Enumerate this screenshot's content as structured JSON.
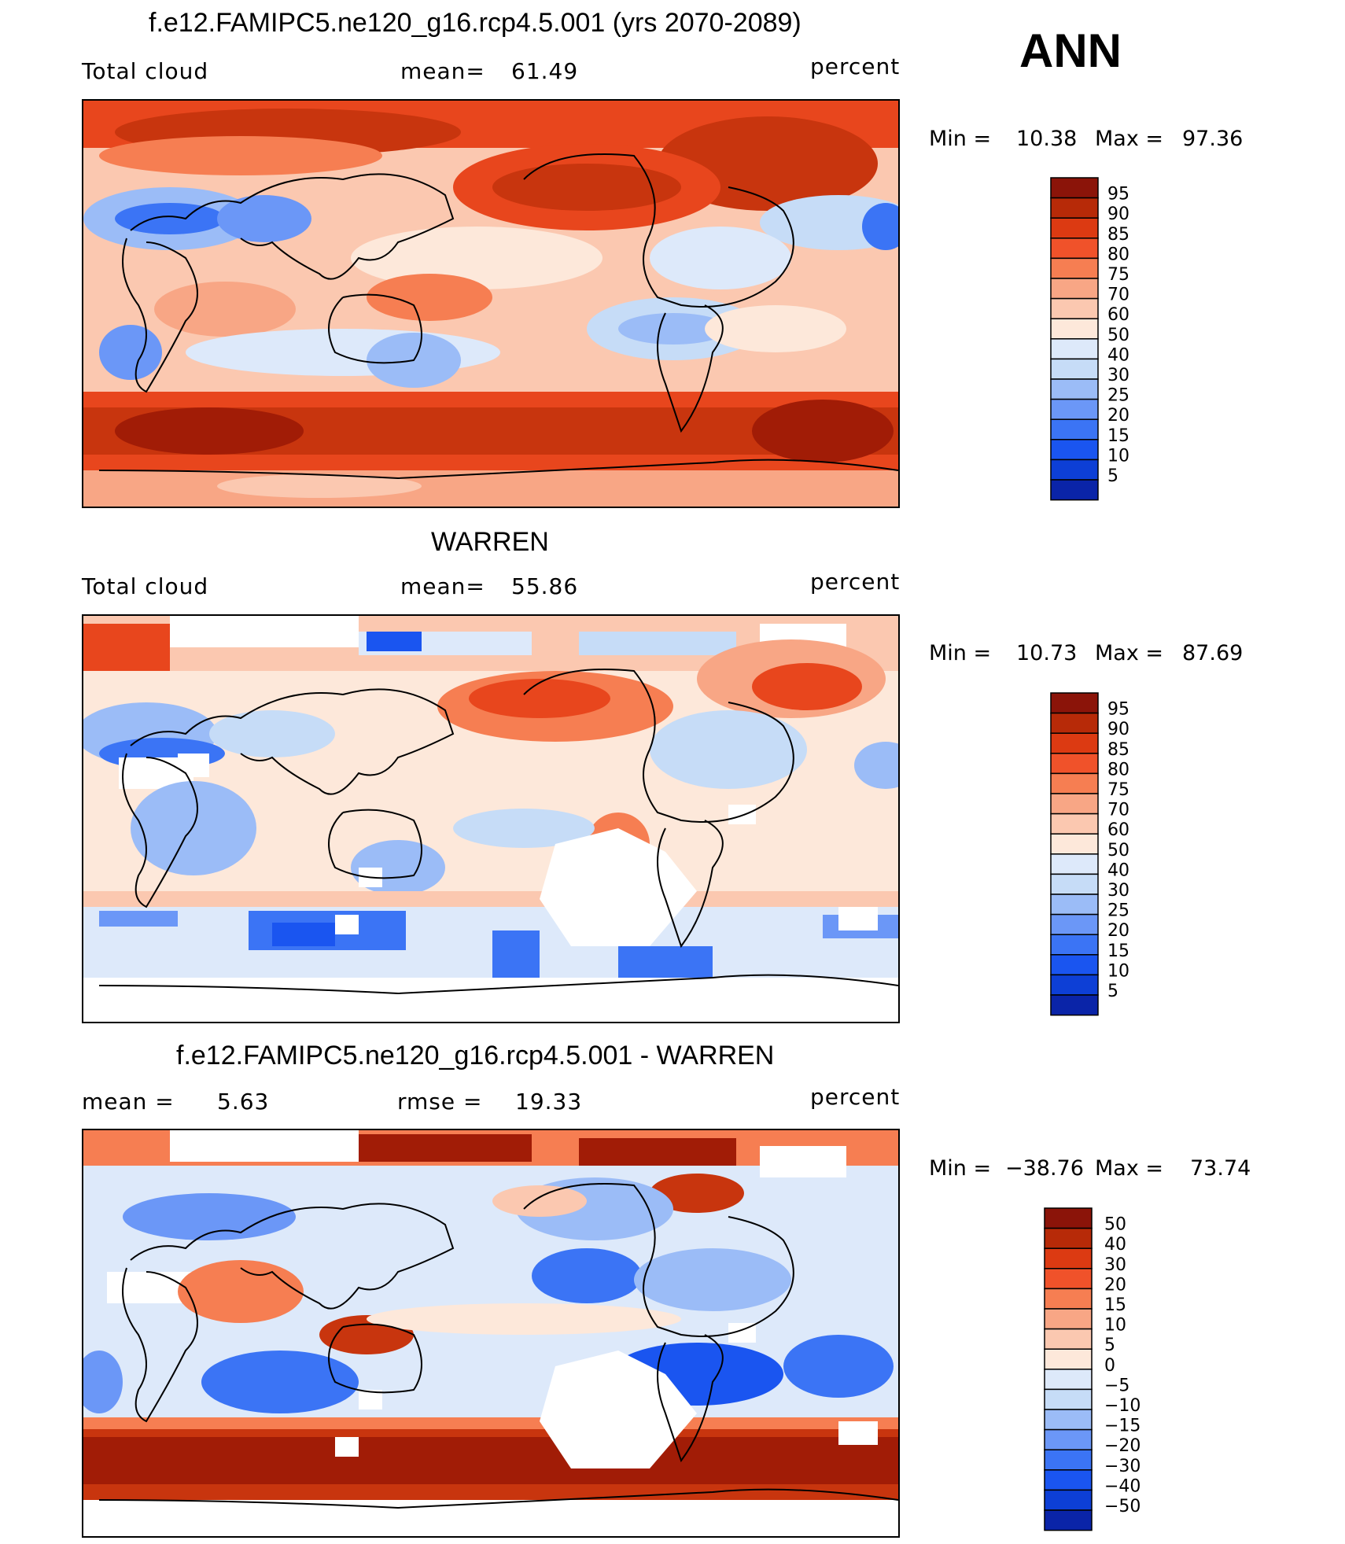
{
  "annual_label": "ANN",
  "colors": {
    "seq": [
      "#08086b",
      "#0a24a8",
      "#0d3fd6",
      "#1a55f0",
      "#3b74f5",
      "#6b97f7",
      "#9bbcf7",
      "#c6dcf7",
      "#dde9fa",
      "#fde8da",
      "#fbc8b0",
      "#f8a685",
      "#f67e52",
      "#f0522a",
      "#dc3a12",
      "#b72a08",
      "#8b1409"
    ],
    "map_seq": [
      "#1a55f0",
      "#3b74f5",
      "#6b97f7",
      "#9bbcf7",
      "#c6dcf7",
      "#fde8da",
      "#fbc8b0",
      "#f8a685",
      "#f67e52",
      "#e8461d",
      "#c8350e",
      "#a11c06"
    ]
  },
  "chart_data": [
    {
      "type": "heatmap",
      "title": "f.e12.FAMIPC5.ne120_g16.rcp4.5.001 (yrs 2070-2089)",
      "variable": "Total cloud",
      "stat_label": "mean=",
      "stat_value": "61.49",
      "units": "percent",
      "min_label": "Min =",
      "min_value": "10.38",
      "max_label": "Max =",
      "max_value": "97.36",
      "colorbar_levels": [
        "95",
        "90",
        "85",
        "80",
        "75",
        "70",
        "60",
        "50",
        "40",
        "30",
        "25",
        "20",
        "15",
        "10",
        "5"
      ]
    },
    {
      "type": "heatmap",
      "title": "WARREN",
      "variable": "Total cloud",
      "stat_label": "mean=",
      "stat_value": "55.86",
      "units": "percent",
      "min_label": "Min =",
      "min_value": "10.73",
      "max_label": "Max =",
      "max_value": "87.69",
      "colorbar_levels": [
        "95",
        "90",
        "85",
        "80",
        "75",
        "70",
        "60",
        "50",
        "40",
        "30",
        "25",
        "20",
        "15",
        "10",
        "5"
      ]
    },
    {
      "type": "heatmap",
      "title": "f.e12.FAMIPC5.ne120_g16.rcp4.5.001 - WARREN",
      "stat_label": "mean =",
      "stat_value": "5.63",
      "stat2_label": "rmse =",
      "stat2_value": "19.33",
      "units": "percent",
      "min_label": "Min =",
      "min_value": "−38.76",
      "max_label": "Max =",
      "max_value": "73.74",
      "colorbar_levels": [
        "50",
        "40",
        "30",
        "20",
        "15",
        "10",
        "5",
        "0",
        "−5",
        "−10",
        "−15",
        "−20",
        "−30",
        "−40",
        "−50"
      ]
    }
  ]
}
